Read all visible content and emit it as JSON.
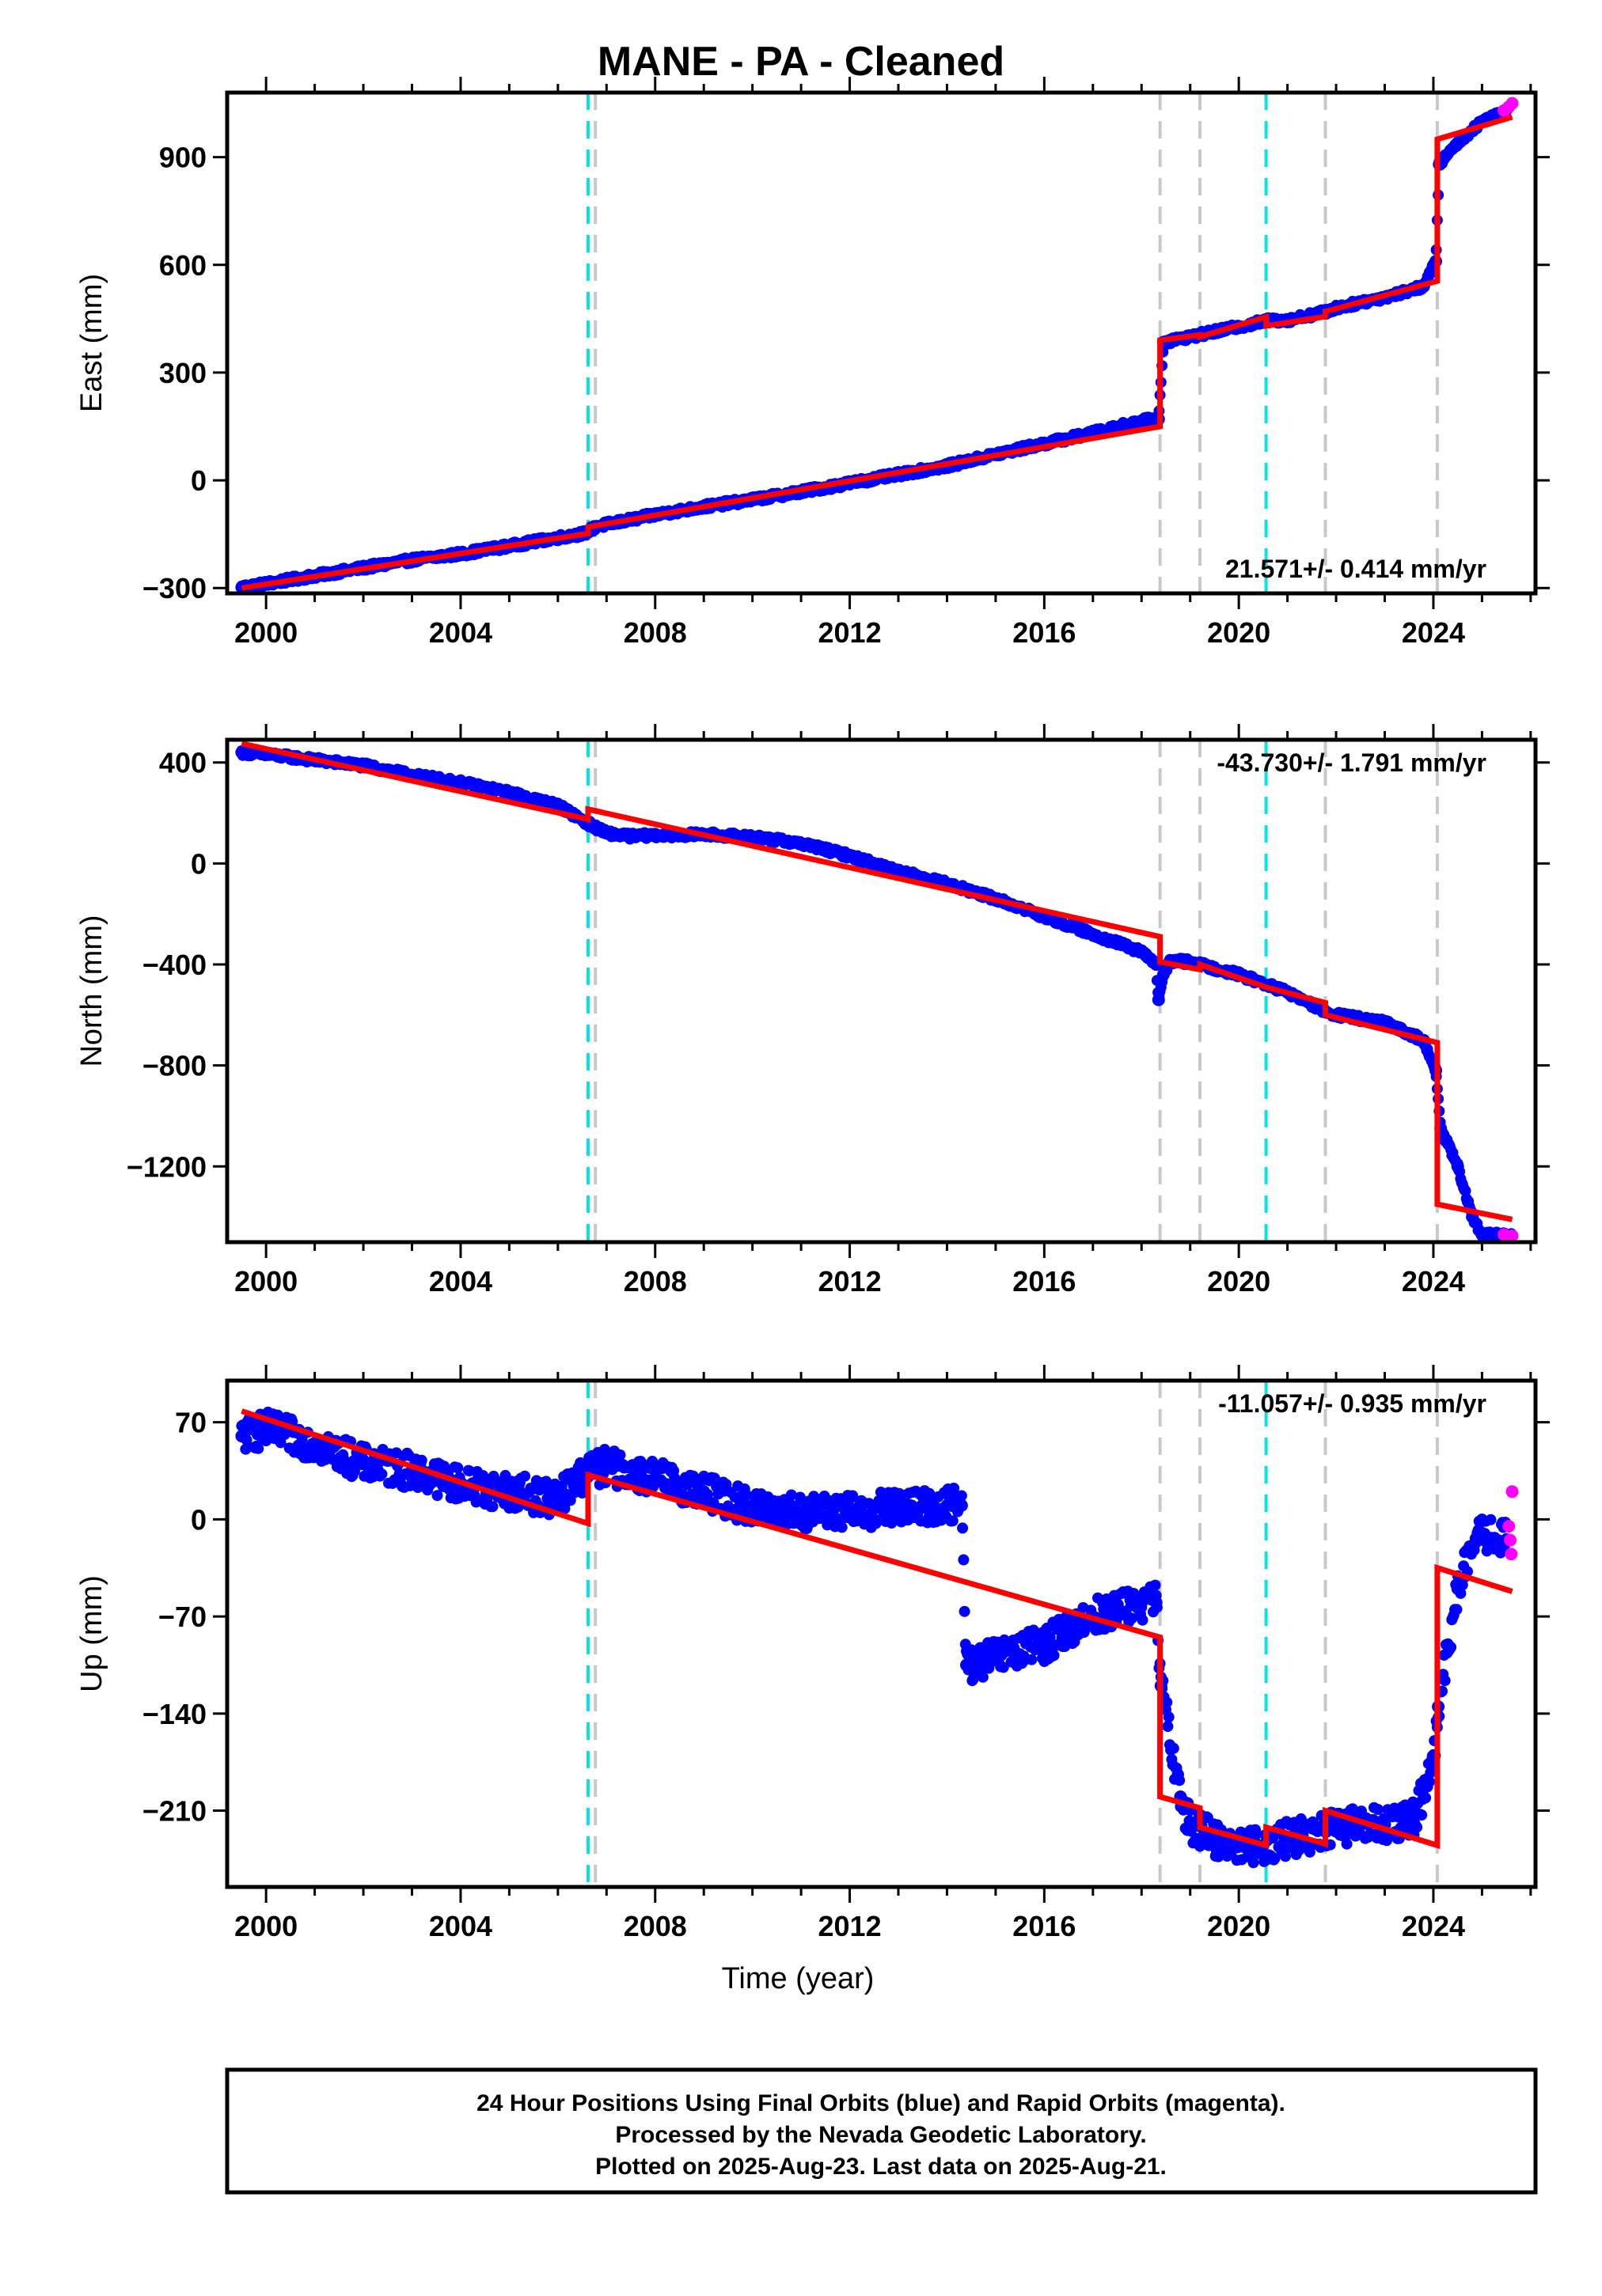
{
  "chart_data": {
    "type": "scatter",
    "title": "MANE  - PA - Cleaned",
    "xlabel": "Time (year)",
    "xlim": [
      1999.2,
      2026.1
    ],
    "x_ticks": [
      2000,
      2004,
      2008,
      2012,
      2016,
      2020,
      2024
    ],
    "x_tick_labels": [
      "2000",
      "2004",
      "2008",
      "2012",
      "2016",
      "2020",
      "2024"
    ],
    "colors": {
      "final_orbits": "#0000ff",
      "rapid_orbits": "#ff00ff",
      "model": "#ff0000",
      "equipment_change": "#c8c8c8",
      "earthquake": "#00e5e5"
    },
    "event_lines": {
      "earthquake": [
        2006.62,
        2020.56
      ],
      "equipment_change": [
        2006.77,
        2018.38,
        2019.2,
        2021.78,
        2024.08
      ]
    },
    "panels": [
      {
        "name": "east",
        "ylabel": "East (mm)",
        "ylim": [
          -315,
          1080
        ],
        "y_ticks": [
          -300,
          0,
          300,
          600,
          900
        ],
        "y_tick_labels": [
          "−300",
          "0",
          "300",
          "600",
          "900"
        ],
        "rate_label": "21.571+/- 0.414 mm/yr",
        "rate_position": "bottom-right",
        "final_orbits": [
          [
            1999.5,
            -298
          ],
          [
            2000,
            -288
          ],
          [
            2001,
            -266
          ],
          [
            2002,
            -244
          ],
          [
            2003,
            -222
          ],
          [
            2004,
            -205
          ],
          [
            2005,
            -183
          ],
          [
            2006,
            -160
          ],
          [
            2006.55,
            -148
          ],
          [
            2006.8,
            -128
          ],
          [
            2007.5,
            -110
          ],
          [
            2008,
            -96
          ],
          [
            2009,
            -74
          ],
          [
            2010,
            -54
          ],
          [
            2011,
            -32
          ],
          [
            2012,
            -8
          ],
          [
            2013,
            16
          ],
          [
            2014,
            40
          ],
          [
            2015,
            72
          ],
          [
            2016,
            102
          ],
          [
            2017,
            132
          ],
          [
            2018,
            166
          ],
          [
            2018.35,
            170
          ],
          [
            2018.45,
            385
          ],
          [
            2019,
            400
          ],
          [
            2019.3,
            408
          ],
          [
            2020,
            428
          ],
          [
            2020.6,
            445
          ],
          [
            2021,
            446
          ],
          [
            2021.8,
            470
          ],
          [
            2022,
            480
          ],
          [
            2023,
            510
          ],
          [
            2023.8,
            540
          ],
          [
            2024.05,
            610
          ],
          [
            2024.12,
            880
          ],
          [
            2024.5,
            940
          ],
          [
            2025,
            1000
          ],
          [
            2025.5,
            1032
          ]
        ],
        "rapid_orbits": [
          [
            2025.45,
            1030
          ],
          [
            2025.55,
            1040
          ],
          [
            2025.62,
            1050
          ]
        ],
        "model": [
          [
            1999.5,
            -300
          ],
          [
            2006.62,
            -148
          ],
          [
            2006.62,
            -130
          ],
          [
            2018.38,
            150
          ],
          [
            2018.38,
            390
          ],
          [
            2019.2,
            405
          ],
          [
            2019.2,
            400
          ],
          [
            2020.56,
            455
          ],
          [
            2020.56,
            430
          ],
          [
            2021.78,
            456
          ],
          [
            2021.78,
            470
          ],
          [
            2024.08,
            555
          ],
          [
            2024.08,
            950
          ],
          [
            2025.62,
            1012
          ]
        ]
      },
      {
        "name": "north",
        "ylabel": "North (mm)",
        "ylim": [
          -1500,
          490
        ],
        "y_ticks": [
          -1200,
          -800,
          -400,
          0,
          400
        ],
        "y_tick_labels": [
          "−1200",
          "−800",
          "−400",
          "0",
          "400"
        ],
        "rate_label": "-43.730+/- 1.791 mm/yr",
        "rate_position": "top-right",
        "final_orbits": [
          [
            1999.5,
            440
          ],
          [
            2000,
            432
          ],
          [
            2001,
            410
          ],
          [
            2002,
            388
          ],
          [
            2003,
            350
          ],
          [
            2004,
            320
          ],
          [
            2005,
            280
          ],
          [
            2006,
            230
          ],
          [
            2006.7,
            150
          ],
          [
            2007,
            120
          ],
          [
            2007.5,
            108
          ],
          [
            2008,
            112
          ],
          [
            2009,
            115
          ],
          [
            2010,
            105
          ],
          [
            2011,
            80
          ],
          [
            2012,
            30
          ],
          [
            2013,
            -30
          ],
          [
            2014,
            -80
          ],
          [
            2015,
            -140
          ],
          [
            2016,
            -210
          ],
          [
            2017,
            -280
          ],
          [
            2018,
            -350
          ],
          [
            2018.3,
            -400
          ],
          [
            2018.35,
            -540
          ],
          [
            2018.45,
            -440
          ],
          [
            2018.6,
            -385
          ],
          [
            2019,
            -390
          ],
          [
            2020,
            -440
          ],
          [
            2021,
            -510
          ],
          [
            2021.8,
            -590
          ],
          [
            2022,
            -600
          ],
          [
            2023,
            -630
          ],
          [
            2023.8,
            -700
          ],
          [
            2024.05,
            -820
          ],
          [
            2024.15,
            -1050
          ],
          [
            2024.5,
            -1200
          ],
          [
            2024.8,
            -1400
          ],
          [
            2025,
            -1470
          ],
          [
            2025.6,
            -1475
          ]
        ],
        "rapid_orbits": [
          [
            2025.45,
            -1470
          ],
          [
            2025.55,
            -1480
          ],
          [
            2025.62,
            -1475
          ]
        ],
        "model": [
          [
            1999.5,
            475
          ],
          [
            2006.62,
            175
          ],
          [
            2006.62,
            215
          ],
          [
            2018.38,
            -290
          ],
          [
            2018.38,
            -390
          ],
          [
            2019.2,
            -420
          ],
          [
            2019.2,
            -400
          ],
          [
            2020.56,
            -490
          ],
          [
            2020.56,
            -490
          ],
          [
            2021.78,
            -552
          ],
          [
            2021.78,
            -600
          ],
          [
            2024.08,
            -710
          ],
          [
            2024.08,
            -1350
          ],
          [
            2025.62,
            -1410
          ]
        ]
      },
      {
        "name": "up",
        "ylabel": "Up (mm)",
        "ylim": [
          -265,
          100
        ],
        "y_ticks": [
          -210,
          -140,
          -70,
          0,
          70
        ],
        "y_tick_labels": [
          "−210",
          "−140",
          "−70",
          "0",
          "70"
        ],
        "rate_label": "-11.057+/- 0.935 mm/yr",
        "rate_position": "top-right",
        "final_orbits": [
          [
            1999.5,
            60
          ],
          [
            2000,
            65
          ],
          [
            2001,
            55
          ],
          [
            2002,
            40
          ],
          [
            2003,
            35
          ],
          [
            2004,
            25
          ],
          [
            2005,
            20
          ],
          [
            2006,
            15
          ],
          [
            2006.6,
            35
          ],
          [
            2007,
            38
          ],
          [
            2008,
            30
          ],
          [
            2009,
            20
          ],
          [
            2010,
            8
          ],
          [
            2011,
            5
          ],
          [
            2012,
            5
          ],
          [
            2013,
            8
          ],
          [
            2014,
            10
          ],
          [
            2014.3,
            10
          ],
          [
            2014.4,
            -105
          ],
          [
            2015,
            -100
          ],
          [
            2016,
            -90
          ],
          [
            2017,
            -70
          ],
          [
            2018,
            -60
          ],
          [
            2018.3,
            -60
          ],
          [
            2018.4,
            -120
          ],
          [
            2018.8,
            -200
          ],
          [
            2019,
            -220
          ],
          [
            2019.5,
            -230
          ],
          [
            2020,
            -235
          ],
          [
            2020.5,
            -235
          ],
          [
            2021,
            -230
          ],
          [
            2021.8,
            -225
          ],
          [
            2022,
            -222
          ],
          [
            2023,
            -220
          ],
          [
            2023.6,
            -215
          ],
          [
            2024,
            -180
          ],
          [
            2024.1,
            -135
          ],
          [
            2024.5,
            -50
          ],
          [
            2024.8,
            -20
          ],
          [
            2025,
            -10
          ],
          [
            2025.5,
            -15
          ]
        ],
        "rapid_orbits": [
          [
            2025.55,
            -5
          ],
          [
            2025.58,
            -15
          ],
          [
            2025.6,
            -25
          ],
          [
            2025.62,
            20
          ]
        ],
        "model": [
          [
            1999.5,
            78
          ],
          [
            2006.62,
            -3
          ],
          [
            2006.62,
            32
          ],
          [
            2018.38,
            -85
          ],
          [
            2018.38,
            -200
          ],
          [
            2019.2,
            -208
          ],
          [
            2019.2,
            -222
          ],
          [
            2020.56,
            -235
          ],
          [
            2020.56,
            -222
          ],
          [
            2021.78,
            -234
          ],
          [
            2021.78,
            -210
          ],
          [
            2024.08,
            -235
          ],
          [
            2024.08,
            -35
          ],
          [
            2025.62,
            -52
          ]
        ]
      }
    ]
  },
  "footer": {
    "line1": "24 Hour Positions Using Final Orbits (blue) and Rapid Orbits (magenta).",
    "line2": "Processed by the Nevada Geodetic Laboratory.",
    "line3": "Plotted on 2025-Aug-23. Last data on 2025-Aug-21."
  }
}
